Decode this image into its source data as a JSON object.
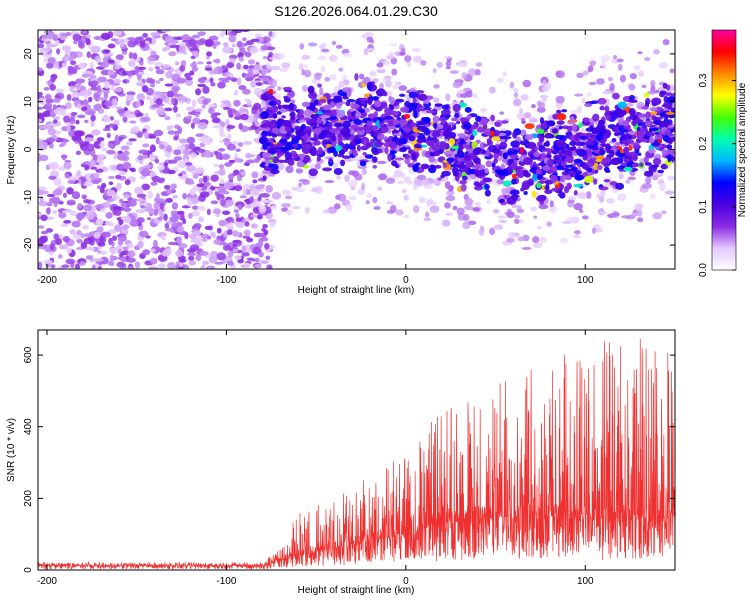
{
  "title": "S126.2026.064.01.29.C30",
  "chart_data": [
    {
      "type": "heatmap",
      "name": "spectrogram",
      "xlabel": "Height of straight line (km)",
      "ylabel": "Frequency (Hz)",
      "xlim": [
        -205,
        150
      ],
      "ylim": [
        -25,
        25
      ],
      "xticks": [
        -200,
        -100,
        0,
        100
      ],
      "yticks": [
        -20,
        -10,
        0,
        10,
        20
      ],
      "colorbar": {
        "label": "Normalized spectral amplitude",
        "range": [
          0,
          0.38
        ],
        "ticks": [
          "0.0",
          "0.1",
          "0.2",
          "0.3"
        ],
        "tick_values": [
          0,
          0.1,
          0.2,
          0.3
        ],
        "colors": [
          "#ffffff",
          "#e4c8ff",
          "#8a2be2",
          "#4a00e0",
          "#0000ff",
          "#00b8ff",
          "#00ffb0",
          "#44ff00",
          "#ffff00",
          "#ff8800",
          "#ff0000",
          "#ff00a0"
        ]
      },
      "regions": [
        {
          "x_range": [
            -205,
            -80
          ],
          "freq_center": 0,
          "freq_halfwidth": 25,
          "amplitude": 0.055
        },
        {
          "x_range": [
            -80,
            150
          ],
          "freq_center_curve": [
            [
              -80,
              3
            ],
            [
              -20,
              6
            ],
            [
              30,
              1
            ],
            [
              70,
              -3
            ],
            [
              150,
              5
            ]
          ],
          "freq_halfwidth": 10,
          "amplitude": 0.11
        }
      ]
    },
    {
      "type": "line",
      "name": "snr",
      "xlabel": "Height of straight line (km)",
      "ylabel": "SNR (10 * v/v)",
      "xlim": [
        -205,
        150
      ],
      "ylim": [
        0,
        670
      ],
      "xticks": [
        -200,
        -100,
        0,
        100
      ],
      "yticks": [
        0,
        200,
        400,
        600
      ],
      "color": "#ee3030",
      "envelope": [
        {
          "x": -205,
          "baseline": 12,
          "peak": 22
        },
        {
          "x": -80,
          "baseline": 12,
          "peak": 22
        },
        {
          "x": -70,
          "baseline": 25,
          "peak": 60
        },
        {
          "x": -60,
          "baseline": 40,
          "peak": 160
        },
        {
          "x": -40,
          "baseline": 60,
          "peak": 200
        },
        {
          "x": -20,
          "baseline": 80,
          "peak": 280
        },
        {
          "x": 0,
          "baseline": 100,
          "peak": 320
        },
        {
          "x": 20,
          "baseline": 130,
          "peak": 470
        },
        {
          "x": 40,
          "baseline": 140,
          "peak": 480
        },
        {
          "x": 60,
          "baseline": 150,
          "peak": 560
        },
        {
          "x": 80,
          "baseline": 150,
          "peak": 580
        },
        {
          "x": 100,
          "baseline": 140,
          "peak": 650
        },
        {
          "x": 120,
          "baseline": 130,
          "peak": 660
        },
        {
          "x": 150,
          "baseline": 130,
          "peak": 620
        }
      ]
    }
  ]
}
